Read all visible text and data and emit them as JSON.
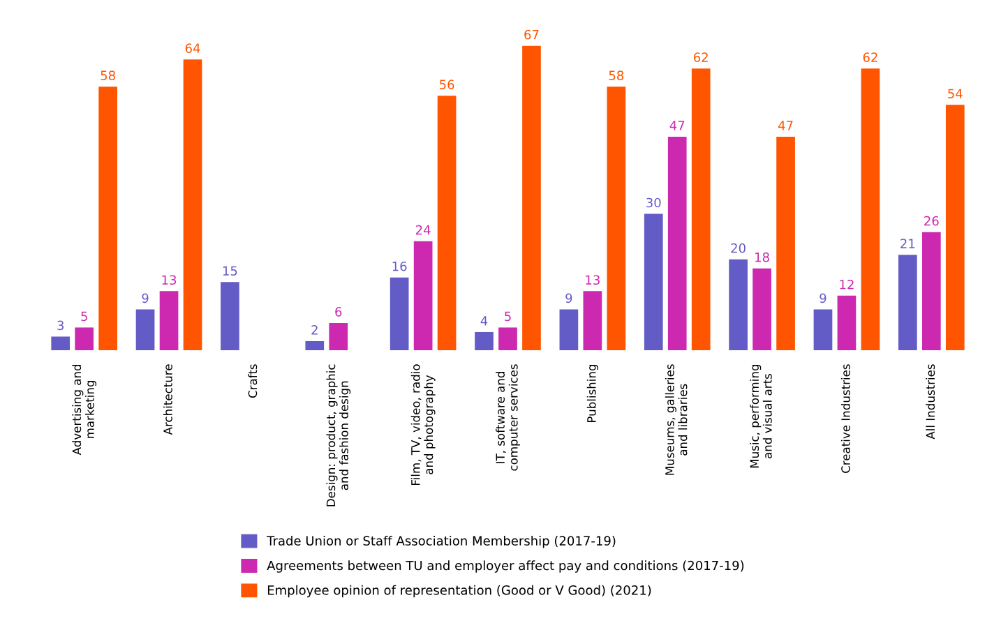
{
  "chart_data": {
    "type": "bar",
    "categories": [
      "Advertising and\nmarketing",
      "Architecture",
      "Crafts",
      "Design: product, graphic\nand fashion design",
      "Film, TV, video, radio\nand photography",
      "IT, software and\ncomputer services",
      "Publishing",
      "Museums, galleries\nand libraries",
      "Music, performing\nand visual arts",
      "Creative Industries",
      "All Industries"
    ],
    "series": [
      {
        "name": "Trade Union or Staff Association Membership (2017-19)",
        "color": "#645cc6",
        "values": [
          3,
          9,
          15,
          2,
          16,
          4,
          9,
          30,
          20,
          9,
          21
        ]
      },
      {
        "name": "Agreements between TU and employer affect pay and conditions (2017-19)",
        "color": "#cc28b0",
        "values": [
          5,
          13,
          null,
          6,
          24,
          5,
          13,
          47,
          18,
          12,
          26
        ]
      },
      {
        "name": "Employee opinion of representation (Good or V Good) (2021)",
        "color": "#ff5500",
        "values": [
          58,
          64,
          null,
          null,
          56,
          67,
          58,
          62,
          47,
          62,
          54
        ]
      }
    ],
    "data_labels": true,
    "legend": "bottom",
    "grid": false,
    "tick_labels": "x"
  }
}
